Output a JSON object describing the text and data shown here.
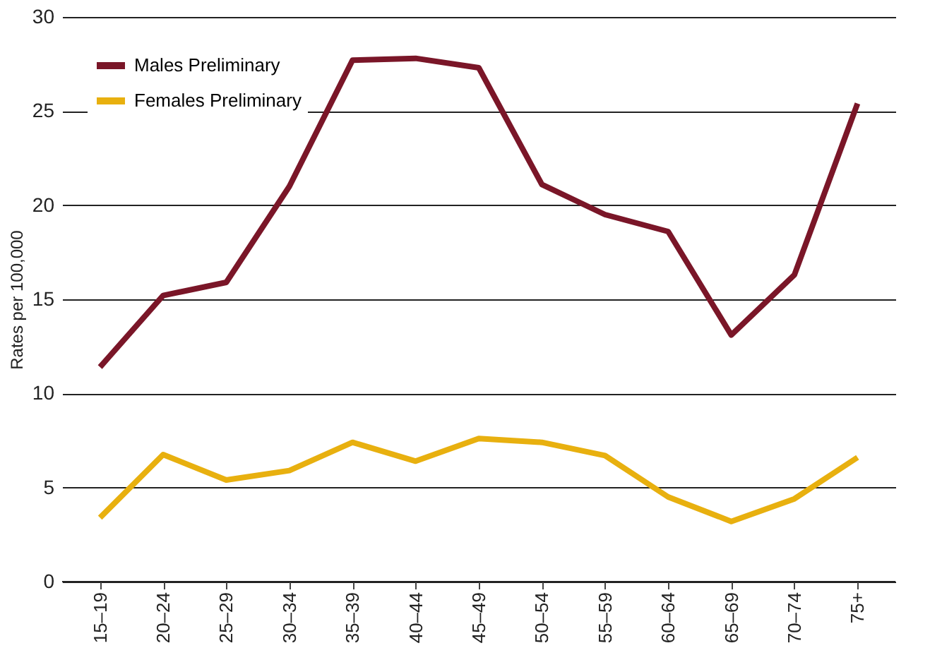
{
  "chart_data": {
    "type": "line",
    "ylabel": "Rates per 100,000",
    "categories": [
      "15–19",
      "20–24",
      "25–29",
      "30–34",
      "35–39",
      "40–44",
      "45–49",
      "50–54",
      "55–59",
      "60–64",
      "65–69",
      "70–74",
      "75+"
    ],
    "series": [
      {
        "name": "Males Preliminary",
        "color": "#7a1628",
        "values": [
          11.4,
          15.2,
          15.9,
          21.0,
          27.7,
          27.8,
          27.3,
          21.1,
          19.5,
          18.6,
          13.1,
          16.3,
          25.4
        ]
      },
      {
        "name": "Females Preliminary",
        "color": "#e8b00f",
        "values": [
          3.4,
          6.75,
          5.4,
          5.9,
          7.4,
          6.4,
          7.6,
          7.4,
          6.7,
          4.5,
          3.2,
          4.4,
          6.6
        ]
      }
    ],
    "ylim": [
      0,
      30
    ],
    "yticks": [
      0,
      5,
      10,
      15,
      20,
      25,
      30
    ],
    "grid": "y",
    "legend": "top left",
    "marker": "none",
    "line_style": "solid"
  }
}
